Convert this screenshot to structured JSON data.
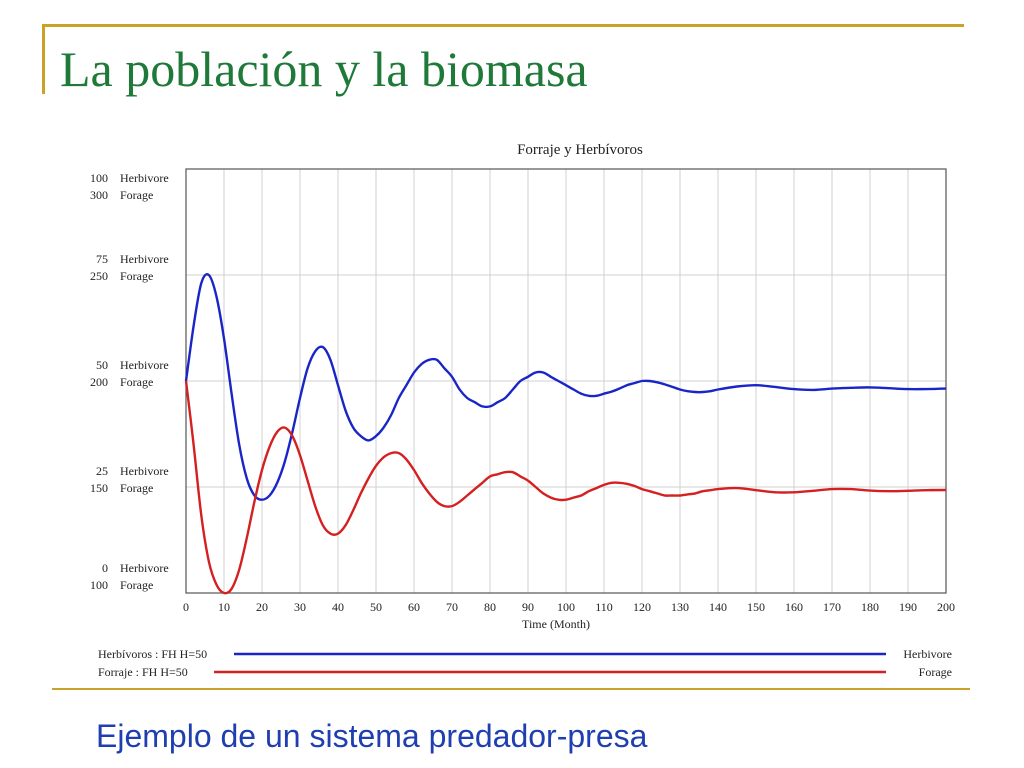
{
  "slide": {
    "title": "La población y la biomasa",
    "subtitle": "Ejemplo de un sistema predador-presa"
  },
  "colors": {
    "accent_frame": "#c9a227",
    "title": "#1f7a3a",
    "subtitle": "#1f3fb0",
    "herbivore": "#1a25c8",
    "forage": "#d42020",
    "grid": "#d0d0d0"
  },
  "chart_data": {
    "type": "line",
    "title": "Forraje y Herbívoros",
    "xlabel": "Time (Month)",
    "xlim": [
      0,
      200
    ],
    "x_ticks": [
      0,
      10,
      20,
      30,
      40,
      50,
      60,
      70,
      80,
      90,
      100,
      110,
      120,
      130,
      140,
      150,
      160,
      170,
      180,
      190,
      200
    ],
    "grid": true,
    "legend_placement": "bottom",
    "axes": [
      {
        "unit": "Herbivore",
        "range": [
          0,
          100
        ],
        "ticks": [
          {
            "value": 100,
            "label": "100"
          },
          {
            "value": 75,
            "label": "75"
          },
          {
            "value": 50,
            "label": "50"
          },
          {
            "value": 25,
            "label": "25"
          },
          {
            "value": 0,
            "label": "0"
          }
        ]
      },
      {
        "unit": "Forage",
        "range": [
          100,
          300
        ],
        "ticks": [
          {
            "value": 300,
            "label": "300"
          },
          {
            "value": 250,
            "label": "250"
          },
          {
            "value": 200,
            "label": "200"
          },
          {
            "value": 150,
            "label": "150"
          },
          {
            "value": 100,
            "label": "100"
          }
        ]
      }
    ],
    "series": [
      {
        "name": "Herbívoros : FH H=50",
        "unit_label": "Herbivore",
        "axis": 0,
        "color": "#1a25c8",
        "points": [
          [
            0,
            50
          ],
          [
            2,
            63
          ],
          [
            4,
            73
          ],
          [
            6,
            75
          ],
          [
            8,
            70
          ],
          [
            10,
            60
          ],
          [
            12,
            47
          ],
          [
            14,
            35
          ],
          [
            16,
            27
          ],
          [
            18,
            23
          ],
          [
            20,
            22
          ],
          [
            22,
            23
          ],
          [
            24,
            26
          ],
          [
            26,
            31
          ],
          [
            28,
            38
          ],
          [
            30,
            46
          ],
          [
            32,
            53
          ],
          [
            34,
            57
          ],
          [
            36,
            58
          ],
          [
            38,
            55
          ],
          [
            40,
            49
          ],
          [
            42,
            43
          ],
          [
            44,
            39
          ],
          [
            46,
            37
          ],
          [
            48,
            36
          ],
          [
            50,
            37
          ],
          [
            52,
            39
          ],
          [
            54,
            42
          ],
          [
            56,
            46
          ],
          [
            58,
            49
          ],
          [
            60,
            52
          ],
          [
            62,
            54
          ],
          [
            64,
            55
          ],
          [
            66,
            55
          ],
          [
            68,
            53
          ],
          [
            70,
            51
          ],
          [
            72,
            48
          ],
          [
            74,
            46
          ],
          [
            76,
            45
          ],
          [
            78,
            44
          ],
          [
            80,
            44
          ],
          [
            82,
            45
          ],
          [
            84,
            46
          ],
          [
            86,
            48
          ],
          [
            88,
            50
          ],
          [
            90,
            51
          ],
          [
            92,
            52
          ],
          [
            94,
            52
          ],
          [
            96,
            51
          ],
          [
            98,
            50
          ],
          [
            100,
            49
          ],
          [
            102,
            48
          ],
          [
            104,
            47
          ],
          [
            106,
            46.5
          ],
          [
            108,
            46.5
          ],
          [
            110,
            47
          ],
          [
            112,
            47.5
          ],
          [
            114,
            48.2
          ],
          [
            116,
            49
          ],
          [
            118,
            49.5
          ],
          [
            120,
            50
          ],
          [
            122,
            50
          ],
          [
            124,
            49.7
          ],
          [
            126,
            49.2
          ],
          [
            128,
            48.6
          ],
          [
            130,
            48
          ],
          [
            132,
            47.6
          ],
          [
            134,
            47.4
          ],
          [
            136,
            47.4
          ],
          [
            138,
            47.6
          ],
          [
            140,
            48
          ],
          [
            145,
            48.7
          ],
          [
            150,
            49
          ],
          [
            155,
            48.6
          ],
          [
            160,
            48.1
          ],
          [
            165,
            47.9
          ],
          [
            170,
            48.2
          ],
          [
            175,
            48.4
          ],
          [
            180,
            48.5
          ],
          [
            185,
            48.3
          ],
          [
            190,
            48.1
          ],
          [
            195,
            48.1
          ],
          [
            200,
            48.2
          ]
        ]
      },
      {
        "name": "Forraje : FH H=50",
        "unit_label": "Forage",
        "axis": 1,
        "color": "#d42020",
        "points": [
          [
            0,
            200
          ],
          [
            2,
            170
          ],
          [
            4,
            137
          ],
          [
            6,
            115
          ],
          [
            8,
            104
          ],
          [
            10,
            100
          ],
          [
            12,
            102
          ],
          [
            14,
            111
          ],
          [
            16,
            126
          ],
          [
            18,
            143
          ],
          [
            20,
            158
          ],
          [
            22,
            169
          ],
          [
            24,
            176
          ],
          [
            26,
            178
          ],
          [
            28,
            174
          ],
          [
            30,
            165
          ],
          [
            32,
            153
          ],
          [
            34,
            141
          ],
          [
            36,
            132
          ],
          [
            38,
            128
          ],
          [
            40,
            128
          ],
          [
            42,
            132
          ],
          [
            44,
            139
          ],
          [
            46,
            147
          ],
          [
            48,
            154
          ],
          [
            50,
            160
          ],
          [
            52,
            164
          ],
          [
            54,
            166
          ],
          [
            56,
            166
          ],
          [
            58,
            163
          ],
          [
            60,
            158
          ],
          [
            62,
            152
          ],
          [
            64,
            147
          ],
          [
            66,
            143
          ],
          [
            68,
            141
          ],
          [
            70,
            141
          ],
          [
            72,
            143
          ],
          [
            74,
            146
          ],
          [
            76,
            149
          ],
          [
            78,
            152
          ],
          [
            80,
            155
          ],
          [
            82,
            156
          ],
          [
            84,
            157
          ],
          [
            86,
            157
          ],
          [
            88,
            155
          ],
          [
            90,
            153
          ],
          [
            92,
            150
          ],
          [
            94,
            147
          ],
          [
            96,
            145
          ],
          [
            98,
            144
          ],
          [
            100,
            144
          ],
          [
            102,
            145
          ],
          [
            104,
            146
          ],
          [
            106,
            148
          ],
          [
            108,
            149.5
          ],
          [
            110,
            151
          ],
          [
            112,
            152
          ],
          [
            114,
            152
          ],
          [
            116,
            151.5
          ],
          [
            118,
            150.5
          ],
          [
            120,
            149
          ],
          [
            122,
            148
          ],
          [
            124,
            147
          ],
          [
            126,
            146
          ],
          [
            128,
            146
          ],
          [
            130,
            146
          ],
          [
            132,
            146.5
          ],
          [
            134,
            147
          ],
          [
            136,
            148
          ],
          [
            138,
            148.5
          ],
          [
            140,
            149
          ],
          [
            145,
            149.5
          ],
          [
            150,
            148.5
          ],
          [
            155,
            147.5
          ],
          [
            160,
            147.5
          ],
          [
            165,
            148.2
          ],
          [
            170,
            149
          ],
          [
            175,
            149
          ],
          [
            180,
            148.3
          ],
          [
            185,
            148
          ],
          [
            190,
            148.2
          ],
          [
            195,
            148.5
          ],
          [
            200,
            148.6
          ]
        ]
      }
    ]
  }
}
